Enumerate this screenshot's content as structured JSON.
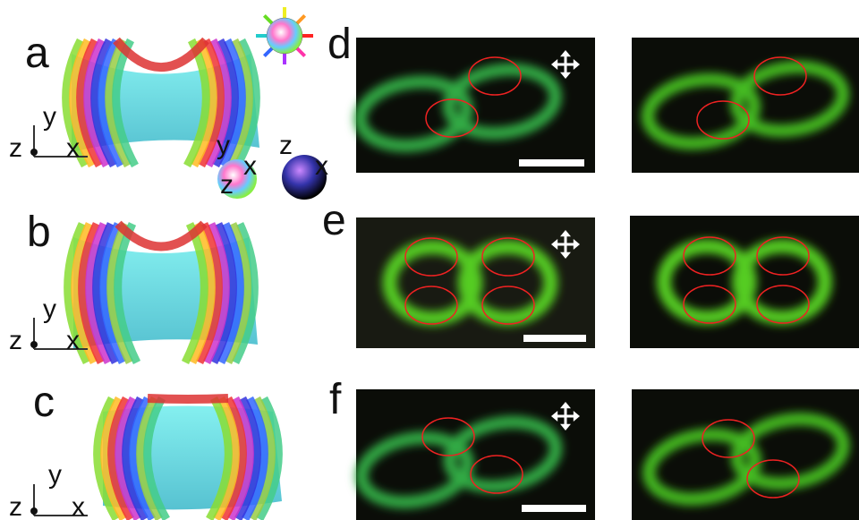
{
  "panels": [
    {
      "label": "a",
      "axis_labels": {
        "z": "z",
        "y": "y",
        "x": "x"
      }
    },
    {
      "label": "b",
      "axis_labels": {
        "z": "z",
        "y": "y",
        "x": "x"
      }
    },
    {
      "label": "c",
      "axis_labels": {
        "z": "z",
        "y": "y",
        "x": "x"
      }
    },
    {
      "label": "d"
    },
    {
      "label": "e"
    },
    {
      "label": "f"
    }
  ],
  "spheres": [
    {
      "axis_labels": {
        "y": "y",
        "x": "x",
        "z": "z"
      }
    },
    {
      "axis_labels": {
        "z": "z",
        "x": "x"
      }
    }
  ]
}
